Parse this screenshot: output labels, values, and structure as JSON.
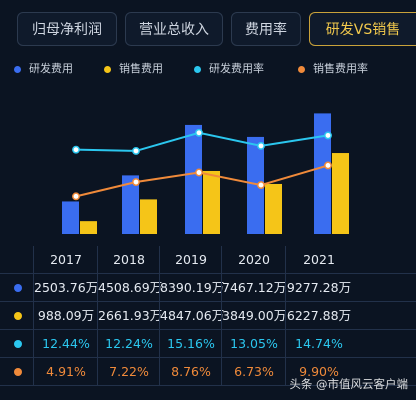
{
  "tabs": [
    {
      "label": "归母净利润",
      "active": false
    },
    {
      "label": "营业总收入",
      "active": false
    },
    {
      "label": "费用率",
      "active": false
    },
    {
      "label": "研发VS销售",
      "active": true
    }
  ],
  "legend": [
    {
      "label": "研发费用",
      "color": "#3a6df0"
    },
    {
      "label": "销售费用",
      "color": "#f5c518"
    },
    {
      "label": "研发费用率",
      "color": "#2bc7ef"
    },
    {
      "label": "销售费用率",
      "color": "#f08a3a"
    }
  ],
  "chart_data": {
    "type": "bar",
    "categories": [
      "2017",
      "2018",
      "2019",
      "2020",
      "2021"
    ],
    "series": [
      {
        "name": "研发费用",
        "kind": "bar",
        "color": "#3a6df0",
        "values": [
          2503.76,
          4508.69,
          8390.19,
          7467.12,
          9277.28
        ]
      },
      {
        "name": "销售费用",
        "kind": "bar",
        "color": "#f5c518",
        "values": [
          988.09,
          2661.93,
          4847.06,
          3849.0,
          6227.88
        ]
      },
      {
        "name": "研发费用率",
        "kind": "line",
        "color": "#2bc7ef",
        "values": [
          12.44,
          12.24,
          15.16,
          13.05,
          14.74
        ]
      },
      {
        "name": "销售费用率",
        "kind": "line",
        "color": "#f08a3a",
        "values": [
          4.91,
          7.22,
          8.76,
          6.73,
          9.9
        ]
      }
    ]
  },
  "table": {
    "headers": [
      "2017",
      "2018",
      "2019",
      "2020",
      "2021"
    ],
    "rows": [
      {
        "color": "#3a6df0",
        "textColor": "#e6ebf2",
        "cells": [
          "2503.76万",
          "4508.69万",
          "8390.19万",
          "7467.12万",
          "9277.28万"
        ]
      },
      {
        "color": "#f5c518",
        "textColor": "#e6ebf2",
        "cells": [
          "988.09万",
          "2661.93万",
          "4847.06万",
          "3849.00万",
          "6227.88万"
        ]
      },
      {
        "color": "#2bc7ef",
        "textColor": "#2bc7ef",
        "cells": [
          "12.44%",
          "12.24%",
          "15.16%",
          "13.05%",
          "14.74%"
        ]
      },
      {
        "color": "#f08a3a",
        "textColor": "#f08a3a",
        "cells": [
          "4.91%",
          "7.22%",
          "8.76%",
          "6.73%",
          "9.90%"
        ]
      }
    ]
  },
  "watermark": "头条 @市值风云客户端"
}
